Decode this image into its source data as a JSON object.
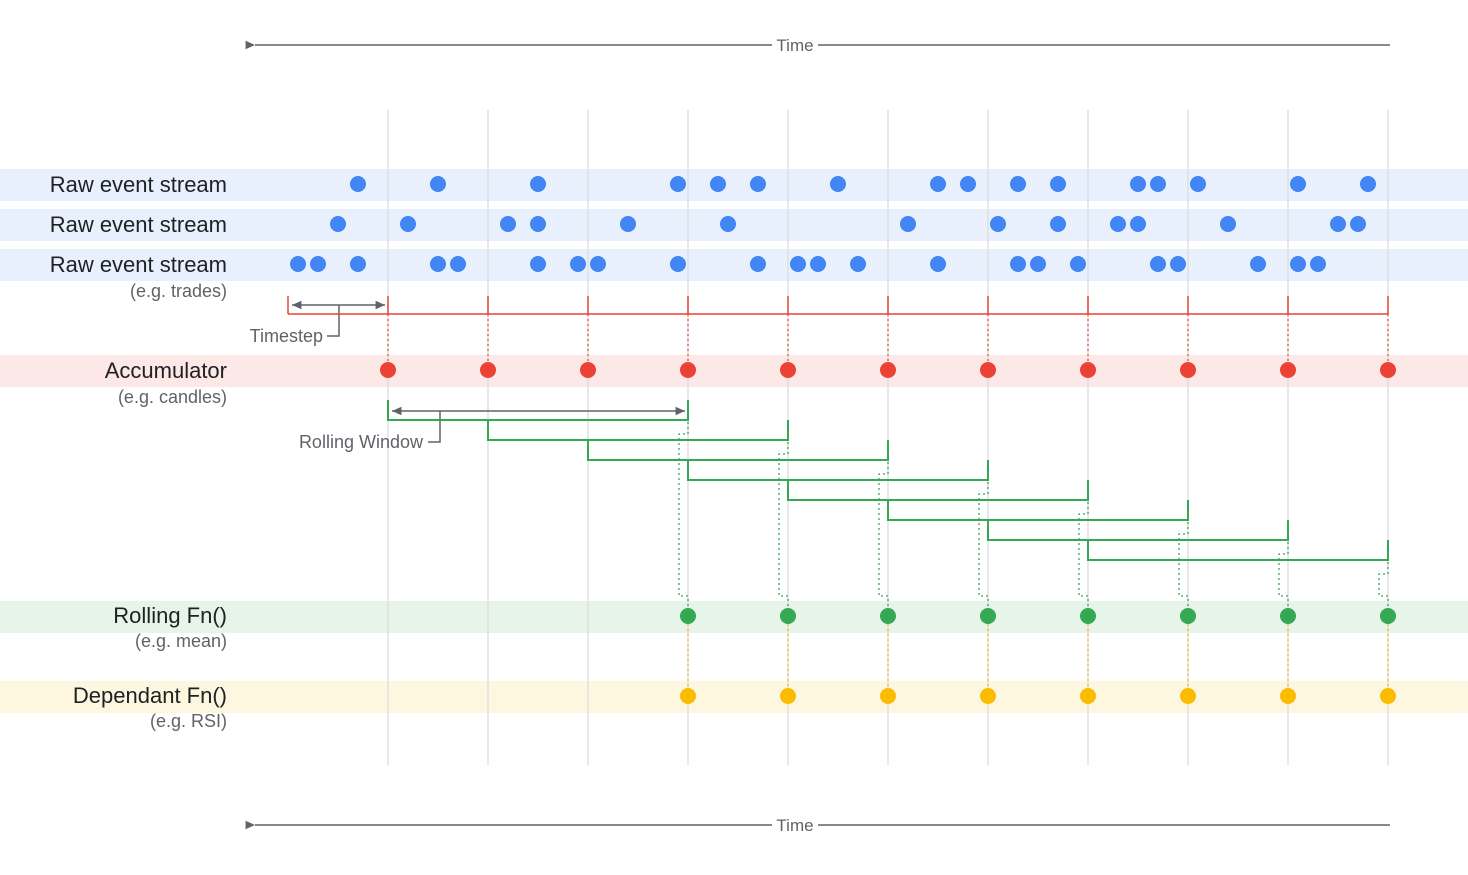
{
  "time_axis": {
    "label": "Time",
    "direction": "left"
  },
  "rows": {
    "raw1": {
      "label": "Raw event stream"
    },
    "raw2": {
      "label": "Raw event stream"
    },
    "raw3": {
      "label": "Raw event stream",
      "sublabel": "(e.g. trades)"
    },
    "accumulator": {
      "label": "Accumulator",
      "sublabel": "(e.g. candles)"
    },
    "rolling": {
      "label": "Rolling Fn()",
      "sublabel": "(e.g. mean)"
    },
    "dependant": {
      "label": "Dependant Fn()",
      "sublabel": "(e.g. RSI)"
    }
  },
  "annotations": {
    "timestep": "Timestep",
    "rolling_window": "Rolling Window"
  },
  "colors": {
    "raw": "#4285f4",
    "raw_band": "#e8f0fe",
    "accumulator": "#ea4335",
    "accumulator_band": "#fce8e6",
    "rolling": "#34a853",
    "rolling_band": "#e6f4ea",
    "dependant": "#fbbc04",
    "dependant_band": "#fef7e0",
    "gridline": "#e0e0e0",
    "axis": "#5f6368"
  },
  "timeline": {
    "step_count": 11,
    "window_size": 3,
    "accumulator_steps": [
      1,
      2,
      3,
      4,
      5,
      6,
      7,
      8,
      9,
      10,
      11
    ],
    "rolling_steps": [
      4,
      5,
      6,
      7,
      8,
      9,
      10,
      11
    ],
    "dependant_steps": [
      4,
      5,
      6,
      7,
      8,
      9,
      10,
      11
    ]
  },
  "events": {
    "raw1": [
      0.7,
      1.5,
      2.5,
      3.9,
      4.3,
      4.7,
      5.5,
      6.5,
      6.8,
      7.3,
      7.7,
      8.5,
      8.7,
      9.1,
      10.1,
      10.8
    ],
    "raw2": [
      0.5,
      1.2,
      2.2,
      2.5,
      3.4,
      4.4,
      6.2,
      7.1,
      7.7,
      8.3,
      8.5,
      9.4,
      10.5,
      10.7
    ],
    "raw3": [
      0.1,
      0.3,
      0.7,
      1.5,
      1.7,
      2.5,
      2.9,
      3.1,
      3.9,
      4.7,
      5.1,
      5.3,
      5.7,
      6.5,
      7.3,
      7.5,
      7.9,
      8.7,
      8.9,
      9.7,
      10.1,
      10.3
    ]
  }
}
